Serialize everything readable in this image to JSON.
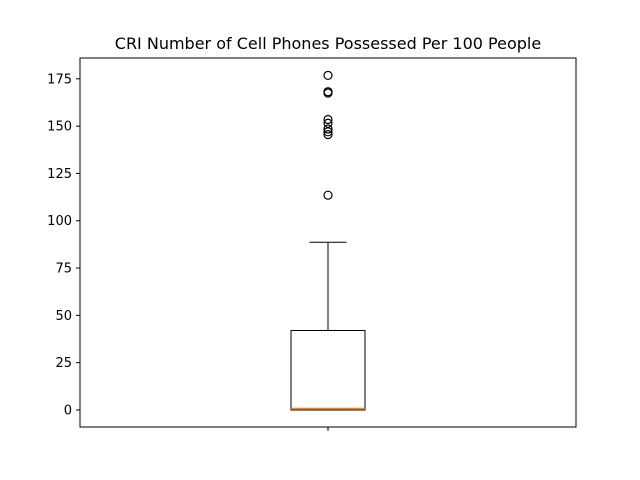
{
  "chart_data": {
    "type": "box",
    "title": "CRI Number of Cell Phones Possessed Per 100 People",
    "xlabel": "",
    "ylabel": "",
    "categories": [
      ""
    ],
    "ylim": [
      -9,
      186
    ],
    "yticks": [
      0,
      25,
      50,
      75,
      100,
      125,
      150,
      175
    ],
    "grid": false,
    "box": {
      "whisker_low": 0,
      "q1": 0,
      "median": 0.8,
      "q3": 42,
      "whisker_high": 88.6
    },
    "outliers": [
      113.5,
      145.5,
      147,
      148.5,
      151.5,
      153.5,
      167.5,
      168.2,
      176.8
    ],
    "colors": {
      "box": "#000000",
      "median": "#ff7f0e",
      "outlier": "#000000"
    }
  }
}
